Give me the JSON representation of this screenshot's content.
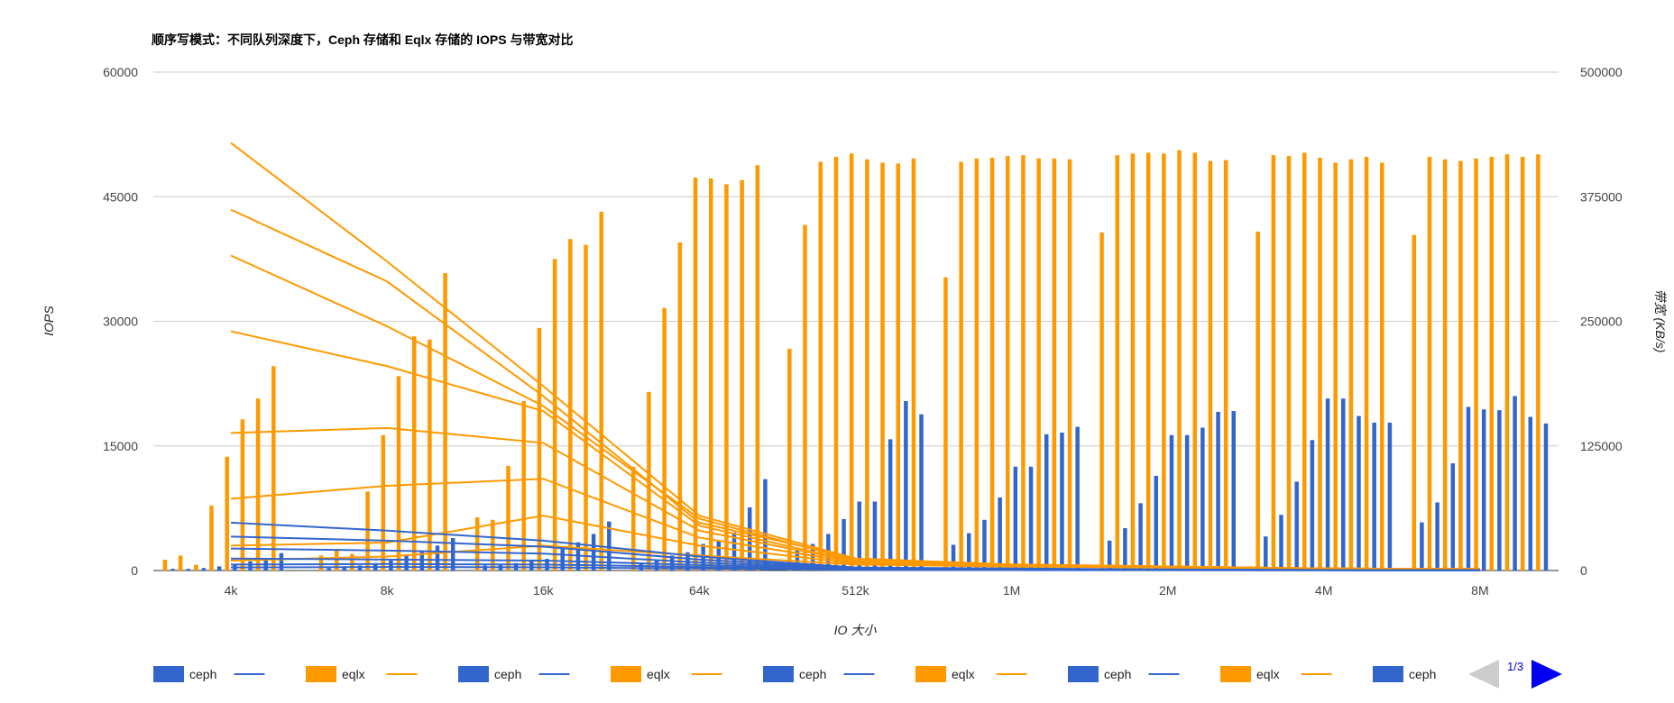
{
  "chart_data": {
    "type": "bar",
    "title": "顺序写模式：不同队列深度下，Ceph 存储和 Eqlx 存储的 IOPS 与带宽对比",
    "xlabel": "IO 大小",
    "ylabel": "IOPS",
    "y2label": "带宽 (KB/s)",
    "categories": [
      "4k",
      "8k",
      "16k",
      "64k",
      "512k",
      "1M",
      "2M",
      "4M",
      "8M"
    ],
    "ylim": [
      0,
      60000
    ],
    "y2lim": [
      0,
      500000
    ],
    "yticks": [
      0,
      15000,
      30000,
      45000,
      60000
    ],
    "y2ticks": [
      0,
      125000,
      250000,
      375000,
      500000
    ],
    "grid": true,
    "legend_position": "bottom",
    "pager": "1/3",
    "colors": {
      "ceph": "#3366cc",
      "eqlx": "#ff9900"
    },
    "bar_series": [
      {
        "name": "eqlx",
        "axis": "IOPS",
        "values": [
          1300,
          1800,
          6400,
          12500,
          26700,
          35300,
          40700,
          40800,
          40400
        ]
      },
      {
        "name": "ceph",
        "axis": "IOPS",
        "values": [
          200,
          300,
          600,
          800,
          2400,
          3100,
          3600,
          4100,
          5800
        ]
      },
      {
        "name": "eqlx",
        "axis": "IOPS",
        "values": [
          1800,
          2600,
          6100,
          21500,
          41600,
          49200,
          50000,
          50000,
          49800
        ]
      },
      {
        "name": "ceph",
        "axis": "IOPS",
        "values": [
          200,
          400,
          700,
          1200,
          3200,
          4500,
          5100,
          6700,
          8200
        ]
      },
      {
        "name": "eqlx",
        "axis": "IOPS",
        "values": [
          700,
          2000,
          12600,
          31600,
          49200,
          49600,
          50200,
          49900,
          49500
        ]
      },
      {
        "name": "ceph",
        "axis": "IOPS",
        "values": [
          300,
          600,
          900,
          1800,
          4400,
          6100,
          8100,
          10700,
          12900
        ]
      },
      {
        "name": "eqlx",
        "axis": "IOPS",
        "values": [
          7800,
          9500,
          20400,
          39500,
          49800,
          49700,
          50300,
          50300,
          49300
        ]
      },
      {
        "name": "ceph",
        "axis": "IOPS",
        "values": [
          500,
          800,
          1200,
          2200,
          6200,
          8800,
          11400,
          15700,
          19700
        ]
      },
      {
        "name": "eqlx",
        "axis": "IOPS",
        "values": [
          13700,
          16300,
          29200,
          47300,
          50200,
          49900,
          50200,
          49700,
          49600
        ]
      },
      {
        "name": "ceph",
        "axis": "IOPS",
        "values": [
          800,
          1200,
          1400,
          3200,
          8300,
          12500,
          16300,
          20700,
          19400
        ]
      },
      {
        "name": "eqlx",
        "axis": "IOPS",
        "values": [
          18200,
          23400,
          37500,
          47200,
          49500,
          50000,
          50600,
          49100,
          49800
        ]
      },
      {
        "name": "ceph",
        "axis": "IOPS",
        "values": [
          1100,
          1800,
          2600,
          3600,
          8300,
          12500,
          16300,
          20700,
          19300
        ]
      },
      {
        "name": "eqlx",
        "axis": "IOPS",
        "values": [
          20700,
          28200,
          39900,
          46500,
          49100,
          49600,
          50300,
          49500,
          50100
        ]
      },
      {
        "name": "ceph",
        "axis": "IOPS",
        "values": [
          1500,
          2400,
          3400,
          4600,
          15800,
          16400,
          17200,
          18600,
          21000
        ]
      },
      {
        "name": "eqlx",
        "axis": "IOPS",
        "values": [
          24600,
          27800,
          39200,
          47000,
          49000,
          49600,
          49300,
          49800,
          49800
        ]
      },
      {
        "name": "ceph",
        "axis": "IOPS",
        "values": [
          2100,
          3000,
          4400,
          7600,
          20400,
          16600,
          19100,
          17800,
          18500
        ]
      },
      {
        "name": "eqlx",
        "axis": "IOPS",
        "values": [
          0,
          35800,
          43200,
          48800,
          49600,
          49500,
          49400,
          49100,
          50100
        ]
      },
      {
        "name": "ceph",
        "axis": "IOPS",
        "values": [
          0,
          3900,
          5900,
          11000,
          18800,
          17300,
          19200,
          17800,
          17700
        ]
      }
    ],
    "line_series": [
      {
        "name": "eqlx",
        "axis": "bandwidth",
        "values": [
          429000,
          310000,
          185000,
          55000,
          12000,
          6000,
          4000,
          2000,
          1500
        ]
      },
      {
        "name": "eqlx",
        "axis": "bandwidth",
        "values": [
          362000,
          290000,
          175000,
          48000,
          12000,
          6000,
          4000,
          2000,
          1500
        ]
      },
      {
        "name": "eqlx",
        "axis": "bandwidth",
        "values": [
          316000,
          245000,
          165000,
          52000,
          10000,
          6000,
          4000,
          2000,
          1500
        ]
      },
      {
        "name": "eqlx",
        "axis": "bandwidth",
        "values": [
          240000,
          205000,
          160000,
          45000,
          9000,
          5000,
          4000,
          2000,
          1500
        ]
      },
      {
        "name": "eqlx",
        "axis": "bandwidth",
        "values": [
          138000,
          143000,
          128000,
          40000,
          9000,
          5000,
          4000,
          2000,
          1500
        ]
      },
      {
        "name": "eqlx",
        "axis": "bandwidth",
        "values": [
          72000,
          85000,
          92000,
          33000,
          8000,
          5000,
          3000,
          2000,
          1500
        ]
      },
      {
        "name": "eqlx",
        "axis": "bandwidth",
        "values": [
          25000,
          28000,
          55000,
          25000,
          7000,
          5000,
          3000,
          2000,
          1500
        ]
      },
      {
        "name": "eqlx",
        "axis": "bandwidth",
        "values": [
          10000,
          14000,
          25000,
          15000,
          6000,
          4000,
          3000,
          2000,
          1500
        ]
      },
      {
        "name": "ceph",
        "axis": "bandwidth",
        "values": [
          48000,
          40000,
          30000,
          14000,
          3000,
          2000,
          1000,
          500,
          300
        ]
      },
      {
        "name": "ceph",
        "axis": "bandwidth",
        "values": [
          34000,
          30000,
          24000,
          11000,
          2500,
          1500,
          1000,
          500,
          300
        ]
      },
      {
        "name": "ceph",
        "axis": "bandwidth",
        "values": [
          22000,
          20000,
          17000,
          8000,
          2000,
          1200,
          800,
          400,
          300
        ]
      },
      {
        "name": "ceph",
        "axis": "bandwidth",
        "values": [
          12000,
          11000,
          10000,
          5500,
          1500,
          1000,
          700,
          400,
          300
        ]
      },
      {
        "name": "ceph",
        "axis": "bandwidth",
        "values": [
          6000,
          6500,
          6000,
          3500,
          1000,
          700,
          500,
          300,
          200
        ]
      },
      {
        "name": "ceph",
        "axis": "bandwidth",
        "values": [
          3000,
          3500,
          3200,
          2000,
          600,
          400,
          300,
          200,
          100
        ]
      }
    ],
    "legend": [
      {
        "label": "ceph",
        "kind": "bar"
      },
      {
        "label": "",
        "kind": "line",
        "color": "ceph"
      },
      {
        "label": "eqlx",
        "kind": "bar"
      },
      {
        "label": "",
        "kind": "line",
        "color": "eqlx"
      },
      {
        "label": "ceph",
        "kind": "bar"
      },
      {
        "label": "",
        "kind": "line",
        "color": "ceph"
      },
      {
        "label": "eqlx",
        "kind": "bar"
      },
      {
        "label": "",
        "kind": "line",
        "color": "eqlx"
      },
      {
        "label": "ceph",
        "kind": "bar"
      },
      {
        "label": "",
        "kind": "line",
        "color": "ceph"
      },
      {
        "label": "eqlx",
        "kind": "bar"
      },
      {
        "label": "",
        "kind": "line",
        "color": "eqlx"
      },
      {
        "label": "ceph",
        "kind": "bar"
      },
      {
        "label": "",
        "kind": "line",
        "color": "ceph"
      },
      {
        "label": "eqlx",
        "kind": "bar"
      },
      {
        "label": "",
        "kind": "line",
        "color": "eqlx"
      },
      {
        "label": "ceph",
        "kind": "bar"
      }
    ]
  }
}
